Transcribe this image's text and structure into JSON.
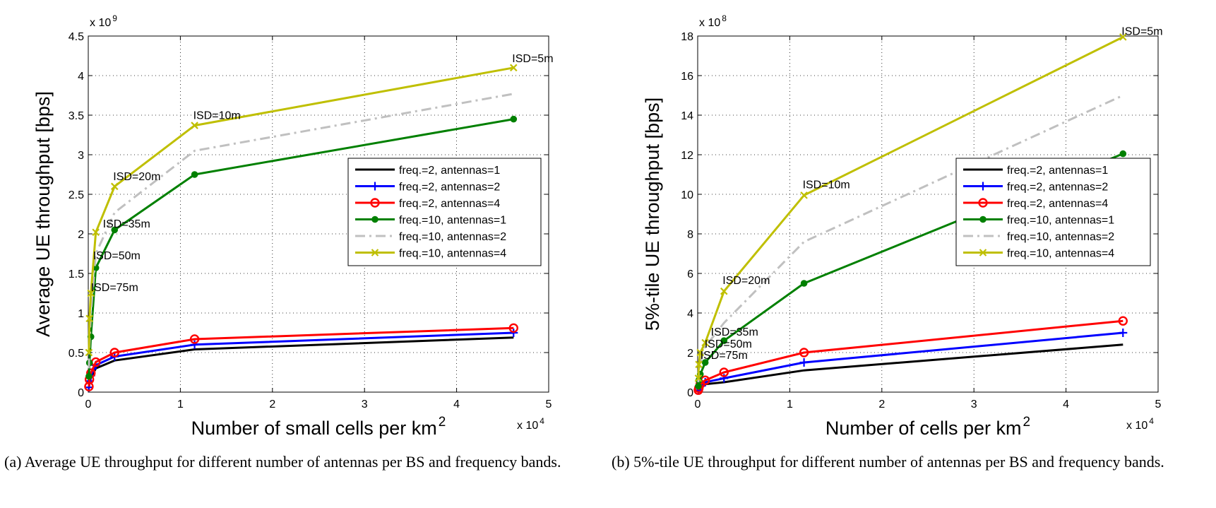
{
  "chart_data": [
    {
      "type": "line",
      "xlabel": "Number of small cells per km",
      "xlabel_sup": "2",
      "ylabel": "Average UE throughput [bps]",
      "x_exponent": "x 10",
      "x_exponent_sup": "4",
      "y_exponent": "x 10",
      "y_exponent_sup": "9",
      "xlim": [
        0,
        5
      ],
      "ylim": [
        0,
        4.5
      ],
      "xticks": [
        0,
        1,
        2,
        3,
        4,
        5
      ],
      "xtick_labels": [
        "0",
        "1",
        "2",
        "3",
        "4",
        "5"
      ],
      "yticks": [
        0,
        0.5,
        1,
        1.5,
        2,
        2.5,
        3,
        3.5,
        4,
        4.5
      ],
      "ytick_labels": [
        "0",
        "0.5",
        "1",
        "1.5",
        "2",
        "2.5",
        "3",
        "3.5",
        "4",
        "4.5"
      ],
      "grid": true,
      "legend_position": "middle-right",
      "x": [
        0.0071,
        0.0127,
        0.0286,
        0.0817,
        0.2857,
        1.1547,
        4.6188
      ],
      "series": [
        {
          "name": "freq.=2, antennas=1",
          "color": "#000000",
          "marker": "none",
          "dash": "solid",
          "values": [
            0.05,
            0.12,
            0.18,
            0.3,
            0.4,
            0.54,
            0.69
          ]
        },
        {
          "name": "freq.=2, antennas=2",
          "color": "#0000ff",
          "marker": "plus",
          "dash": "solid",
          "values": [
            0.06,
            0.14,
            0.21,
            0.34,
            0.45,
            0.6,
            0.75
          ]
        },
        {
          "name": "freq.=2, antennas=4",
          "color": "#ff0000",
          "marker": "circle",
          "dash": "solid",
          "values": [
            0.07,
            0.16,
            0.24,
            0.38,
            0.5,
            0.67,
            0.81
          ]
        },
        {
          "name": "freq.=10, antennas=1",
          "color": "#008000",
          "marker": "dot",
          "dash": "solid",
          "values": [
            0.2,
            0.37,
            0.7,
            1.57,
            2.05,
            2.75,
            3.45
          ]
        },
        {
          "name": "freq.=10, antennas=2",
          "color": "#c0c0c0",
          "marker": "none",
          "dash": "dashdot",
          "values": [
            0.3,
            0.6,
            1.0,
            1.75,
            2.27,
            3.05,
            3.77
          ]
        },
        {
          "name": "freq.=10, antennas=4",
          "color": "#bfbf00",
          "marker": "x",
          "dash": "solid",
          "values": [
            0.5,
            0.93,
            1.25,
            2.02,
            2.6,
            3.37,
            4.1
          ]
        }
      ],
      "annotations": [
        {
          "text": "ISD=75m",
          "x": 0.0127,
          "y": 1.25
        },
        {
          "text": "ISD=50m",
          "x": 0.0286,
          "y": 1.65
        },
        {
          "text": "ISD=35m",
          "x": 0.0817,
          "y": 2.02
        },
        {
          "text": "ISD=20m",
          "x": 0.2857,
          "y": 2.6
        },
        {
          "text": "ISD=10m",
          "x": 1.1547,
          "y": 3.37
        },
        {
          "text": "ISD=5m",
          "x": 4.6188,
          "y": 4.1
        }
      ]
    },
    {
      "type": "line",
      "xlabel": "Number of cells per km",
      "xlabel_sup": "2",
      "ylabel": "5%-tile UE throughput [bps]",
      "x_exponent": "x 10",
      "x_exponent_sup": "4",
      "y_exponent": "x 10",
      "y_exponent_sup": "8",
      "xlim": [
        0,
        5
      ],
      "ylim": [
        0,
        18
      ],
      "xticks": [
        0,
        1,
        2,
        3,
        4,
        5
      ],
      "xtick_labels": [
        "0",
        "1",
        "2",
        "3",
        "4",
        "5"
      ],
      "yticks": [
        0,
        2,
        4,
        6,
        8,
        10,
        12,
        14,
        16,
        18
      ],
      "ytick_labels": [
        "0",
        "2",
        "4",
        "6",
        "8",
        "10",
        "12",
        "14",
        "16",
        "18"
      ],
      "grid": true,
      "legend_position": "middle-right",
      "x": [
        0.0071,
        0.0127,
        0.0286,
        0.0817,
        0.2857,
        1.1547,
        4.6188
      ],
      "series": [
        {
          "name": "freq.=2, antennas=1",
          "color": "#000000",
          "marker": "none",
          "dash": "solid",
          "values": [
            0.1,
            0.2,
            0.3,
            0.4,
            0.5,
            1.1,
            2.4
          ]
        },
        {
          "name": "freq.=2, antennas=2",
          "color": "#0000ff",
          "marker": "plus",
          "dash": "solid",
          "values": [
            0.1,
            0.2,
            0.3,
            0.5,
            0.7,
            1.5,
            3.0
          ]
        },
        {
          "name": "freq.=2, antennas=4",
          "color": "#ff0000",
          "marker": "circle",
          "dash": "solid",
          "values": [
            0.1,
            0.2,
            0.4,
            0.6,
            1.0,
            2.0,
            3.6
          ]
        },
        {
          "name": "freq.=10, antennas=1",
          "color": "#008000",
          "marker": "dot",
          "dash": "solid",
          "values": [
            0.3,
            0.6,
            0.9,
            1.5,
            2.6,
            5.5,
            12.05
          ]
        },
        {
          "name": "freq.=10, antennas=2",
          "color": "#c0c0c0",
          "marker": "none",
          "dash": "dashdot",
          "values": [
            0.5,
            1.0,
            1.5,
            2.3,
            3.5,
            7.6,
            15.0
          ]
        },
        {
          "name": "freq.=10, antennas=4",
          "color": "#bfbf00",
          "marker": "x",
          "dash": "solid",
          "values": [
            0.7,
            1.4,
            2.0,
            2.5,
            5.1,
            9.95,
            17.95
          ]
        }
      ],
      "annotations": [
        {
          "text": "ISD=75m",
          "x": 0.0127,
          "y": 1.4
        },
        {
          "text": "ISD=50m",
          "x": 0.0286,
          "y": 2.0
        },
        {
          "text": "ISD=35m",
          "x": 0.0817,
          "y": 2.5
        },
        {
          "text": "ISD=20m",
          "x": 0.2857,
          "y": 5.1
        },
        {
          "text": "ISD=10m",
          "x": 1.1547,
          "y": 9.95
        },
        {
          "text": "ISD=5m",
          "x": 4.6188,
          "y": 17.95
        }
      ]
    }
  ],
  "captions": {
    "a": "(a) Average UE throughput for different number of antennas per BS and frequency bands.",
    "b": "(b) 5%-tile UE throughput for different number of antennas per BS and frequency bands."
  }
}
